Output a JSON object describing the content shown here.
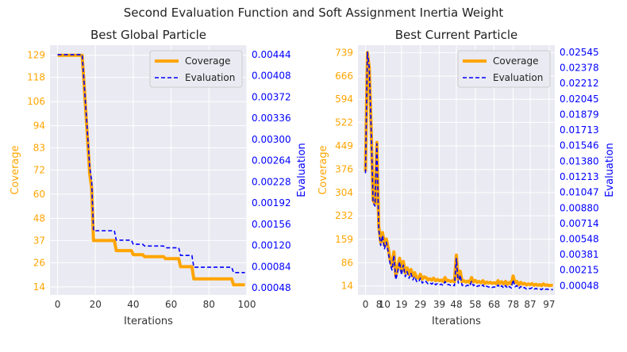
{
  "suptitle": "Second Evaluation Function and Soft Assignment Inertia Weight",
  "colors": {
    "coverage": "#ffa500",
    "evaluation": "#0000ff",
    "plot_bg": "#eaeaf2",
    "grid": "#ffffff",
    "axis_text": "#333333"
  },
  "chart_data": [
    {
      "type": "line",
      "title": "Best Global Particle",
      "xlabel": "Iterations",
      "ylabel": "Coverage",
      "y2label": "Evaluation",
      "xlim": [
        -4,
        100
      ],
      "ylim": [
        10,
        134
      ],
      "y2lim": [
        0.00036,
        0.0046
      ],
      "xticks": [
        "0",
        "20",
        "40",
        "60",
        "80",
        "100"
      ],
      "xtick_values": [
        0,
        20,
        40,
        60,
        80,
        100
      ],
      "yticks": [
        "14",
        "26",
        "37",
        "48",
        "60",
        "72",
        "83",
        "94",
        "106",
        "118",
        "129"
      ],
      "ytick_values": [
        14,
        26,
        37,
        48,
        60,
        72,
        83,
        94,
        106,
        118,
        129
      ],
      "y2ticks": [
        "0.00048",
        "0.00084",
        "0.00120",
        "0.00156",
        "0.00192",
        "0.00228",
        "0.00264",
        "0.00300",
        "0.00336",
        "0.00372",
        "0.00408",
        "0.00444"
      ],
      "y2tick_values": [
        0.00048,
        0.00084,
        0.0012,
        0.00156,
        0.00192,
        0.00228,
        0.00264,
        0.003,
        0.00336,
        0.00372,
        0.00408,
        0.00444
      ],
      "legend": "top-right",
      "grid": true,
      "series": [
        {
          "name": "Coverage",
          "axis": "left",
          "x": [
            0,
            13,
            14,
            15,
            16,
            17,
            18,
            19,
            30,
            31,
            39,
            40,
            45,
            46,
            56,
            57,
            64,
            65,
            71,
            72,
            79,
            80,
            92,
            93,
            99
          ],
          "y": [
            129,
            129,
            115,
            100,
            85,
            70,
            63,
            37,
            37,
            32,
            32,
            30,
            30,
            29,
            29,
            28,
            28,
            24,
            24,
            18,
            18,
            18,
            18,
            15,
            15
          ]
        },
        {
          "name": "Evaluation",
          "axis": "right",
          "x": [
            0,
            13,
            14,
            15,
            16,
            17,
            18,
            19,
            30,
            31,
            39,
            40,
            45,
            46,
            56,
            57,
            64,
            65,
            71,
            72,
            79,
            80,
            92,
            93,
            99
          ],
          "y": [
            0.00444,
            0.00444,
            0.00398,
            0.0035,
            0.00301,
            0.00252,
            0.00229,
            0.00145,
            0.00145,
            0.00129,
            0.00129,
            0.00122,
            0.00122,
            0.00119,
            0.00119,
            0.00116,
            0.00116,
            0.00103,
            0.00103,
            0.00083,
            0.00083,
            0.00083,
            0.00083,
            0.00074,
            0.00074
          ]
        }
      ]
    },
    {
      "type": "line",
      "title": "Best Current Particle",
      "xlabel": "Iterations",
      "ylabel": "Coverage",
      "y2label": "Evaluation",
      "xlim": [
        -4,
        100
      ],
      "ylim": [
        -14,
        762
      ],
      "y2lim": [
        -0.0005,
        0.0262
      ],
      "xticks": [
        "0",
        "10",
        "19",
        "29",
        "39",
        "48",
        "58",
        "68",
        "78",
        "87",
        "97"
      ],
      "xtick_values": [
        0,
        10,
        19,
        29,
        39,
        48,
        58,
        68,
        78,
        87,
        97
      ],
      "xticks_minor": [
        "8"
      ],
      "xtick_minor_values": [
        8
      ],
      "yticks": [
        "14",
        "86",
        "159",
        "232",
        "304",
        "376",
        "449",
        "522",
        "594",
        "666",
        "739"
      ],
      "ytick_values": [
        14,
        86,
        159,
        232,
        304,
        376,
        449,
        522,
        594,
        666,
        739
      ],
      "y2ticks": [
        "0.00048",
        "0.00215",
        "0.00381",
        "0.00548",
        "0.00714",
        "0.00880",
        "0.01047",
        "0.01213",
        "0.01380",
        "0.01546",
        "0.01713",
        "0.01879",
        "0.02045",
        "0.02212",
        "0.02378",
        "0.02545"
      ],
      "y2tick_values": [
        0.00048,
        0.00215,
        0.00381,
        0.00548,
        0.00714,
        0.0088,
        0.01047,
        0.01213,
        0.0138,
        0.01546,
        0.01713,
        0.01879,
        0.02045,
        0.02212,
        0.02378,
        0.02545
      ],
      "legend": "top-right",
      "grid": true,
      "series": [
        {
          "name": "Coverage",
          "axis": "left",
          "x": [
            0,
            1,
            2,
            3,
            4,
            5,
            6,
            7,
            8,
            9,
            10,
            11,
            12,
            13,
            14,
            15,
            16,
            17,
            18,
            19,
            20,
            21,
            22,
            23,
            24,
            25,
            26,
            27,
            28,
            29,
            30,
            31,
            32,
            33,
            34,
            35,
            36,
            37,
            38,
            39,
            40,
            41,
            42,
            43,
            44,
            45,
            46,
            47,
            48,
            49,
            50,
            51,
            52,
            53,
            54,
            55,
            56,
            57,
            58,
            59,
            60,
            61,
            62,
            63,
            64,
            65,
            66,
            67,
            68,
            69,
            70,
            71,
            72,
            73,
            74,
            75,
            76,
            77,
            78,
            79,
            80,
            81,
            82,
            83,
            84,
            85,
            86,
            87,
            88,
            89,
            90,
            91,
            92,
            93,
            94,
            95,
            96,
            97,
            98,
            99
          ],
          "y": [
            370,
            739,
            690,
            500,
            280,
            270,
            460,
            200,
            150,
            180,
            140,
            160,
            130,
            95,
            75,
            120,
            45,
            70,
            100,
            60,
            90,
            55,
            70,
            50,
            65,
            45,
            55,
            40,
            38,
            50,
            35,
            42,
            40,
            33,
            36,
            32,
            38,
            30,
            34,
            30,
            32,
            28,
            40,
            30,
            31,
            28,
            30,
            27,
            110,
            35,
            60,
            28,
            30,
            26,
            29,
            25,
            40,
            27,
            31,
            25,
            28,
            24,
            30,
            22,
            26,
            23,
            25,
            22,
            24,
            21,
            30,
            22,
            27,
            20,
            28,
            19,
            25,
            20,
            45,
            24,
            28,
            18,
            25,
            19,
            22,
            17,
            20,
            18,
            21,
            16,
            19,
            16,
            18,
            15,
            20,
            16,
            17,
            15,
            16,
            15
          ]
        },
        {
          "name": "Evaluation",
          "axis": "right",
          "x": [
            0,
            1,
            2,
            3,
            4,
            5,
            6,
            7,
            8,
            9,
            10,
            11,
            12,
            13,
            14,
            15,
            16,
            17,
            18,
            19,
            20,
            21,
            22,
            23,
            24,
            25,
            26,
            27,
            28,
            29,
            30,
            31,
            32,
            33,
            34,
            35,
            36,
            37,
            38,
            39,
            40,
            41,
            42,
            43,
            44,
            45,
            46,
            47,
            48,
            49,
            50,
            51,
            52,
            53,
            54,
            55,
            56,
            57,
            58,
            59,
            60,
            61,
            62,
            63,
            64,
            65,
            66,
            67,
            68,
            69,
            70,
            71,
            72,
            73,
            74,
            75,
            76,
            77,
            78,
            79,
            80,
            81,
            82,
            83,
            84,
            85,
            86,
            87,
            88,
            89,
            90,
            91,
            92,
            93,
            94,
            95,
            96,
            97,
            98,
            99
          ],
          "y": [
            0.01251,
            0.02545,
            0.02373,
            0.01706,
            0.00935,
            0.009,
            0.01566,
            0.00654,
            0.00479,
            0.00584,
            0.00443,
            0.00514,
            0.00409,
            0.00286,
            0.00216,
            0.00374,
            0.00111,
            0.00198,
            0.00304,
            0.00163,
            0.00269,
            0.00146,
            0.00198,
            0.00128,
            0.00181,
            0.00111,
            0.00146,
            0.00093,
            0.00086,
            0.00128,
            0.00076,
            0.00101,
            0.00093,
            0.00069,
            0.0008,
            0.00065,
            0.00086,
            0.00058,
            0.00072,
            0.00058,
            0.00065,
            0.00051,
            0.00093,
            0.00058,
            0.00062,
            0.00051,
            0.00058,
            0.00048,
            0.00339,
            0.00076,
            0.00163,
            0.00051,
            0.00058,
            0.00044,
            0.00055,
            0.00041,
            0.00093,
            0.00048,
            0.00062,
            0.00041,
            0.00051,
            0.00037,
            0.00058,
            0.0003,
            0.00044,
            0.00034,
            0.00041,
            0.0003,
            0.00037,
            0.00027,
            0.00058,
            0.0003,
            0.00048,
            0.00023,
            0.00051,
            0.0002,
            0.00041,
            0.00023,
            0.00111,
            0.00037,
            0.00051,
            0.00016,
            0.00041,
            0.0002,
            0.0003,
            0.00013,
            0.00023,
            0.00016,
            0.00027,
            9e-05,
            0.0002,
            9e-05,
            0.00016,
            6e-05,
            0.00023,
            9e-05,
            0.00013,
            6e-05,
            9e-05,
            6e-05
          ]
        }
      ]
    }
  ]
}
